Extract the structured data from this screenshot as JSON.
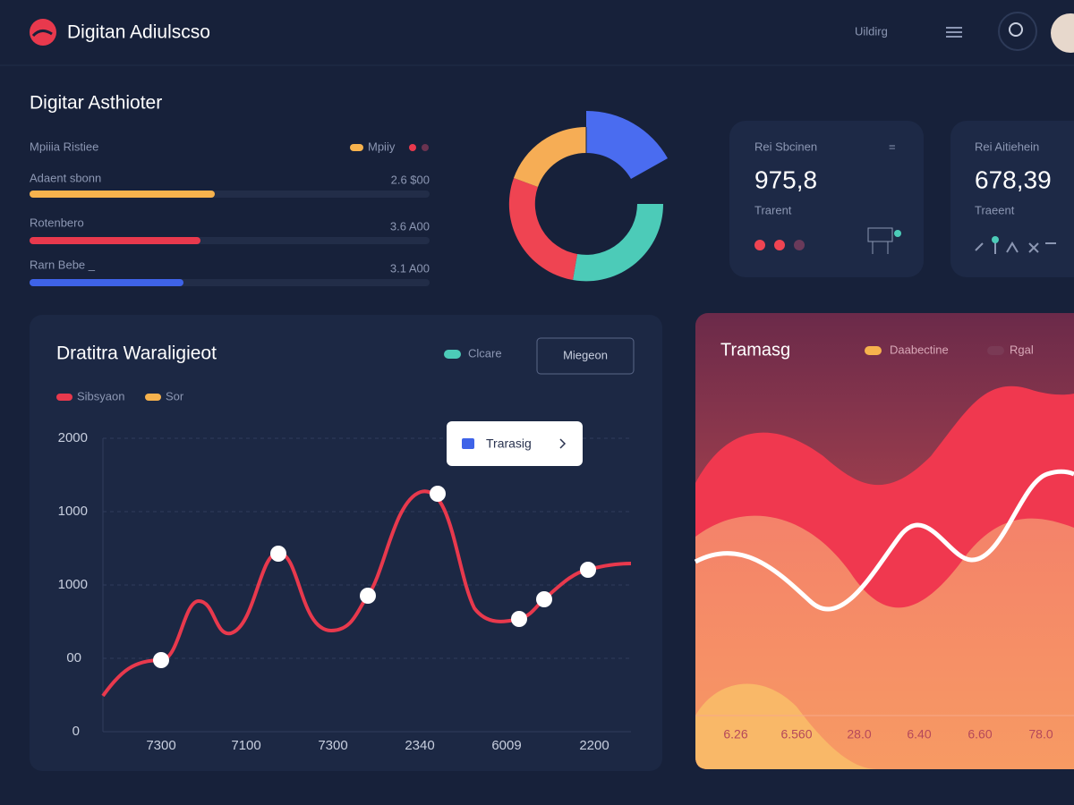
{
  "header": {
    "title": "Digitan Adiulscso",
    "menu_label": "Uildirg"
  },
  "overview": {
    "title": "Digitar Asthioter",
    "subtitle": "Mpiiia Ristiee",
    "legend": "Mpiiy",
    "rows": [
      {
        "label": "Adaent sbonn",
        "value": "2.6 $00"
      },
      {
        "label": "Rotenbero",
        "value": "3.6 A00"
      },
      {
        "label": "Rarn Bebe _",
        "value": "3.1 A00"
      }
    ]
  },
  "cards": [
    {
      "title": "Rei Sbcinen",
      "value": "975,8",
      "caption": "Trarent"
    },
    {
      "title": "Rei Aitiehein",
      "value": "678,39",
      "caption": "Traeent"
    }
  ],
  "line_panel": {
    "title": "Dratitra Waraligieot",
    "legend": "Clcare",
    "button": "Miegeon",
    "series_legend": [
      "Sibsyaon",
      "Sor"
    ],
    "tooltip": "Trarasig",
    "y_labels": [
      "2000",
      "1000",
      "1000",
      "00",
      "0"
    ],
    "x_labels": [
      "7300",
      "7100",
      "7300",
      "2340",
      "6009",
      "2200"
    ]
  },
  "area_panel": {
    "title": "Tramasg",
    "legend": [
      "Daabectine",
      "Rgal"
    ],
    "x_labels": [
      "6.26",
      "6.560",
      "28.0",
      "6.40",
      "6.60",
      "78.0"
    ]
  }
}
